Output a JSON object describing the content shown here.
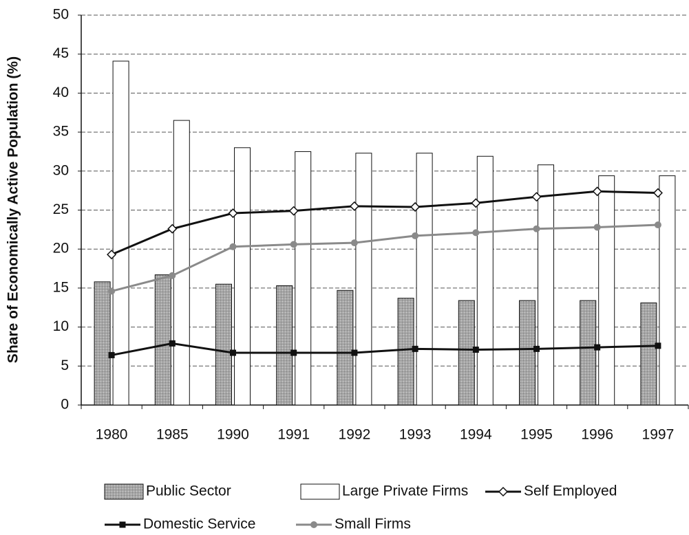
{
  "chart_data": {
    "type": "bar",
    "y_axis_label": "Share of Economically Active Population (%)",
    "categories": [
      "1980",
      "1985",
      "1990",
      "1991",
      "1992",
      "1993",
      "1994",
      "1995",
      "1996",
      "1997"
    ],
    "series": [
      {
        "name": "Public Sector",
        "type": "bar",
        "color": "#a6a6a6",
        "values": [
          15.8,
          16.7,
          15.5,
          15.3,
          14.7,
          13.7,
          13.4,
          13.4,
          13.4,
          13.1
        ]
      },
      {
        "name": "Large Private Firms",
        "type": "bar",
        "color": "#ffffff",
        "values": [
          44.1,
          36.5,
          33.0,
          32.5,
          32.3,
          32.3,
          31.9,
          30.8,
          29.4,
          29.4
        ]
      },
      {
        "name": "Self Employed",
        "type": "line",
        "color": "#111111",
        "marker": "diamond",
        "values": [
          19.3,
          22.6,
          24.6,
          24.9,
          25.5,
          25.4,
          25.9,
          26.7,
          27.4,
          27.2
        ]
      },
      {
        "name": "Domestic Service",
        "type": "line",
        "color": "#111111",
        "marker": "square",
        "values": [
          6.4,
          7.9,
          6.7,
          6.7,
          6.7,
          7.2,
          7.1,
          7.2,
          7.4,
          7.6
        ]
      },
      {
        "name": "Small Firms",
        "type": "line",
        "color": "#8a8a8a",
        "marker": "circle",
        "values": [
          14.6,
          16.6,
          20.3,
          20.6,
          20.8,
          21.7,
          22.1,
          22.6,
          22.8,
          23.1
        ]
      }
    ],
    "ylim": [
      0,
      50
    ],
    "yticks": [
      0,
      5,
      10,
      15,
      20,
      25,
      30,
      35,
      40,
      45,
      50
    ],
    "grid": true,
    "legend": "bottom"
  }
}
